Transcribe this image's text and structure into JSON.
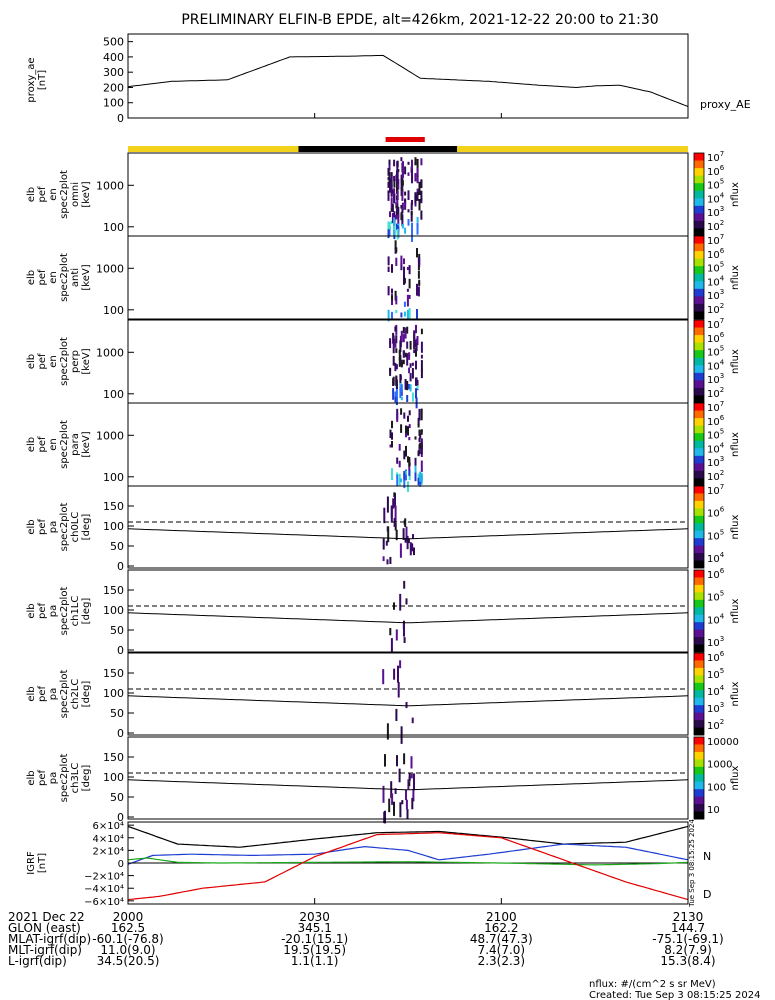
{
  "title": "PRELIMINARY ELFIN-B EPDE, alt=426km, 2021-12-22 20:00 to 21:30",
  "colors": {
    "yellow": "#f2d21a",
    "black": "#000000",
    "red": "#e00000",
    "blue": "#1e3cd2",
    "green": "#18a818"
  },
  "chart_data": [
    {
      "type": "line",
      "name": "proxy_ae",
      "ylabel": "proxy_ae [nT]",
      "ytick_labels": [
        "0",
        "100",
        "200",
        "300",
        "400",
        "500"
      ],
      "ylim": [
        0,
        550
      ],
      "series_label": "proxy_AE",
      "x_minutes": [
        0,
        7,
        16,
        26,
        36,
        41,
        47,
        58,
        66,
        72,
        75,
        79,
        84,
        90
      ],
      "values": [
        205,
        240,
        250,
        400,
        405,
        410,
        260,
        240,
        215,
        200,
        210,
        215,
        170,
        75
      ]
    },
    {
      "type": "timeline",
      "name": "science-zone-bar",
      "segments": [
        {
          "color": "yellow",
          "from_min": 0,
          "to_min": 27.4
        },
        {
          "color": "black",
          "from_min": 27.4,
          "to_min": 52.9
        },
        {
          "color": "yellow",
          "from_min": 52.9,
          "to_min": 90
        }
      ],
      "highlight": {
        "color": "red",
        "from_min": 41.4,
        "to_min": 47.7
      }
    },
    {
      "type": "heatmap",
      "name": "spectrograms",
      "ylabel_unit": "[keV]",
      "ytick_labels": [
        "100",
        "1000"
      ],
      "ylog": true,
      "ylim": [
        60,
        6000
      ],
      "active_window_min": [
        41.3,
        47.1
      ],
      "panels": [
        {
          "label_lines": [
            "elb",
            "pef",
            "en",
            "spec2plot",
            "omni"
          ],
          "density": 1.0,
          "cbar_ticks": [
            "10",
            "10",
            "10",
            "10",
            "10",
            "10"
          ],
          "cbar_exps": [
            "7",
            "6",
            "5",
            "4",
            "3",
            "2"
          ],
          "cbar_label": "nflux"
        },
        {
          "label_lines": [
            "elb",
            "pef",
            "en",
            "spec2plot",
            "anti"
          ],
          "density": 0.35,
          "cbar_ticks": [
            "10",
            "10",
            "10",
            "10",
            "10",
            "10"
          ],
          "cbar_exps": [
            "7",
            "6",
            "5",
            "4",
            "3",
            "2"
          ],
          "cbar_label": "nflux"
        },
        {
          "label_lines": [
            "elb",
            "pef",
            "en",
            "spec2plot",
            "perp"
          ],
          "density": 0.8,
          "cbar_ticks": [
            "10",
            "10",
            "10",
            "10",
            "10",
            "10"
          ],
          "cbar_exps": [
            "7",
            "6",
            "5",
            "4",
            "3",
            "2"
          ],
          "cbar_label": "nflux"
        },
        {
          "label_lines": [
            "elb",
            "pef",
            "en",
            "spec2plot",
            "para"
          ],
          "density": 0.55,
          "cbar_ticks": [
            "10",
            "10",
            "10",
            "10",
            "10",
            "10"
          ],
          "cbar_exps": [
            "7",
            "6",
            "5",
            "4",
            "3",
            "2"
          ],
          "cbar_label": "nflux"
        }
      ]
    },
    {
      "type": "heatmap",
      "name": "pitch-angle-panels",
      "ylabel_unit": "[deg]",
      "ytick_labels": [
        "0",
        "50",
        "100",
        "150"
      ],
      "ylim": [
        0,
        180
      ],
      "losscone_deg": {
        "x_minutes": [
          0,
          45,
          90
        ],
        "values": [
          93,
          68,
          93
        ]
      },
      "antilosscone_deg": {
        "x_minutes": [
          0,
          45,
          90
        ],
        "values": [
          110,
          110,
          110
        ]
      },
      "panels": [
        {
          "label_lines": [
            "elb",
            "pef",
            "pa",
            "spec2plot",
            "ch0LC"
          ],
          "cbar_ticks": [
            "10",
            "10",
            "10",
            "10"
          ],
          "cbar_exps": [
            "7",
            "6",
            "5",
            "4"
          ],
          "cbar_label": "nflux"
        },
        {
          "label_lines": [
            "elb",
            "pef",
            "pa",
            "spec2plot",
            "ch1LC"
          ],
          "cbar_ticks": [
            "10",
            "10",
            "10",
            "10"
          ],
          "cbar_exps": [
            "6",
            "5",
            "4",
            "3"
          ],
          "cbar_label": "nflux"
        },
        {
          "label_lines": [
            "elb",
            "pef",
            "pa",
            "spec2plot",
            "ch2LC"
          ],
          "cbar_ticks": [
            "10",
            "10",
            "10",
            "10",
            "10"
          ],
          "cbar_exps": [
            "6",
            "5",
            "4",
            "3",
            "2"
          ],
          "cbar_label": "nflux"
        },
        {
          "label_lines": [
            "elb",
            "pef",
            "pa",
            "spec2plot",
            "ch3LC"
          ],
          "cbar_ticks": [
            "10000",
            "1000",
            "100",
            "10"
          ],
          "cbar_exps": [
            "",
            "",
            "",
            ""
          ],
          "cbar_label": "nflux"
        }
      ]
    },
    {
      "type": "line",
      "name": "igrf",
      "ylabel": "IGRF [nT]",
      "ytick_labels": [
        "6×10⁴",
        "4×10⁴",
        "2×10⁴",
        "0",
        "−2×10⁴",
        "−4×10⁴",
        "−6×10⁴"
      ],
      "ylim": [
        -65000,
        65000
      ],
      "legend": [
        "N",
        "D"
      ],
      "side_text": "Tue Sep  3 08:15:25 2024",
      "series": [
        {
          "name": "total",
          "color": "black",
          "x_minutes": [
            0,
            8,
            18,
            30,
            40,
            50,
            60,
            70,
            80,
            90
          ],
          "values": [
            58000,
            30000,
            25000,
            38000,
            48000,
            50000,
            41000,
            30000,
            33000,
            58000
          ]
        },
        {
          "name": "N",
          "color": "blue",
          "x_minutes": [
            0,
            4,
            10,
            20,
            30,
            38,
            45,
            50,
            58,
            70,
            80,
            90
          ],
          "values": [
            -2000,
            12000,
            14000,
            12000,
            14000,
            26000,
            20000,
            5000,
            14000,
            30000,
            25000,
            5000
          ]
        },
        {
          "name": "E",
          "color": "green",
          "x_minutes": [
            0,
            3,
            8,
            15,
            30,
            45,
            60,
            75,
            85,
            90
          ],
          "values": [
            5000,
            8000,
            1000,
            0,
            1000,
            2000,
            0,
            -3000,
            -1000,
            1000
          ]
        },
        {
          "name": "D",
          "color": "red",
          "x_minutes": [
            0,
            5,
            12,
            22,
            30,
            40,
            50,
            60,
            70,
            80,
            90
          ],
          "values": [
            -58000,
            -53000,
            -40000,
            -30000,
            10000,
            45000,
            48000,
            40000,
            5000,
            -30000,
            -58000
          ]
        }
      ]
    }
  ],
  "time_axis": {
    "tick_labels": [
      "2000",
      "2030",
      "2100",
      "2130"
    ],
    "tick_minutes": [
      0,
      30,
      60,
      90
    ]
  },
  "ephemeris": {
    "rows": [
      {
        "label": "2021 Dec 22",
        "values": [
          "",
          "",
          "",
          ""
        ]
      },
      {
        "label": "GLON (east)",
        "values": [
          "162.5",
          "345.1",
          "162.2",
          "144.7"
        ]
      },
      {
        "label": "MLAT-igrf(dip)",
        "values": [
          "-60.1(-76.8)",
          "-20.1(15.1)",
          "48.7(47.3)",
          "-75.1(-69.1)"
        ]
      },
      {
        "label": "MLT-igrf(dip)",
        "values": [
          "11.0(9.0)",
          "19.5(19.5)",
          "7.4(7.0)",
          "8.2(7.9)"
        ]
      },
      {
        "label": "L-igrf(dip)",
        "values": [
          "34.5(20.5)",
          "1.1(1.1)",
          "2.3(2.3)",
          "15.3(8.4)"
        ]
      }
    ]
  },
  "footer": {
    "units": "nflux: #/(cm^2 s sr MeV)",
    "created": "Created: Tue Sep  3 08:15:25 2024"
  }
}
